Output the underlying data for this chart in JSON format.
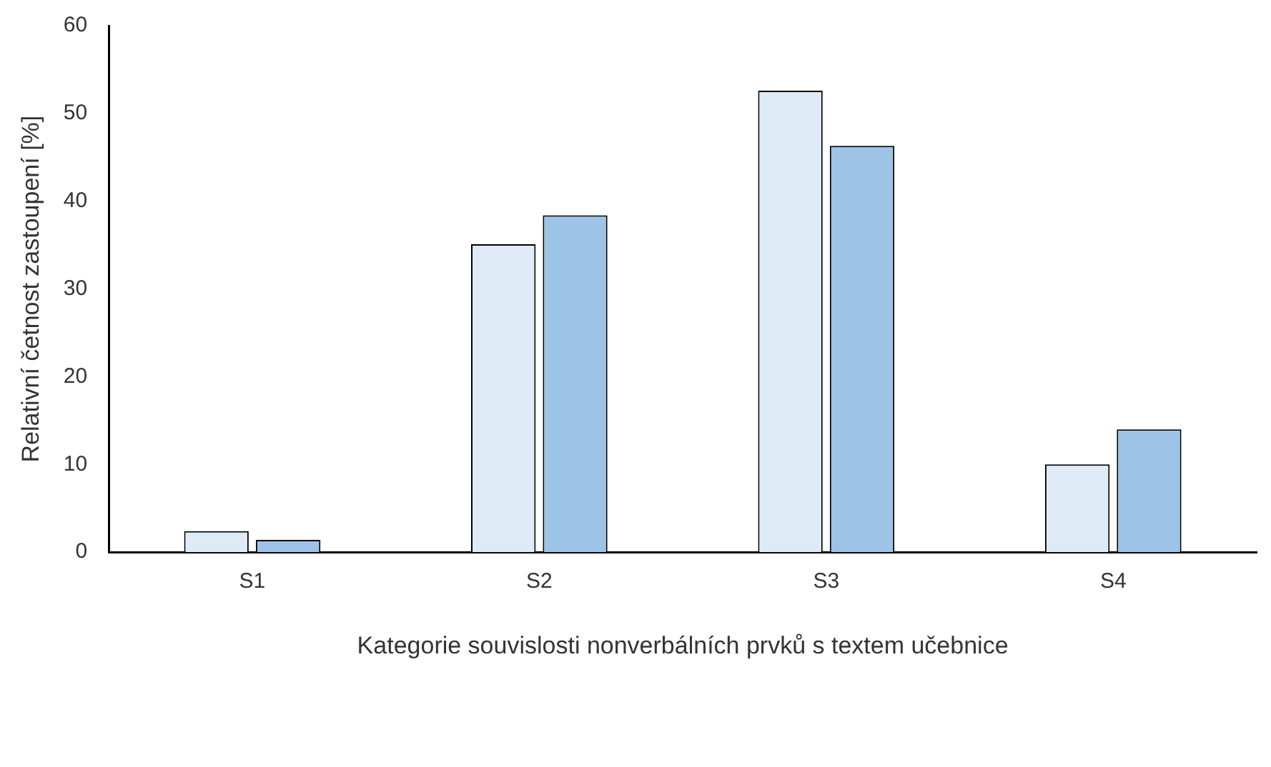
{
  "chart_data": {
    "type": "bar",
    "xlabel": "Kategorie souvislosti nonverbálních prvků s textem učebnice",
    "ylabel": "Relativní četnost zastoupení [%]",
    "categories": [
      "S1",
      "S2",
      "S3",
      "S4"
    ],
    "series": [
      {
        "color": "#deeaf6",
        "values": [
          2.4,
          35.1,
          52.6,
          10.0
        ]
      },
      {
        "color": "#9dc3e6",
        "values": [
          1.4,
          38.4,
          46.3,
          14.0
        ]
      }
    ],
    "ylim": [
      0,
      60
    ],
    "yticks": [
      0,
      10,
      20,
      30,
      40,
      50,
      60
    ],
    "grid": false,
    "legend": false
  }
}
